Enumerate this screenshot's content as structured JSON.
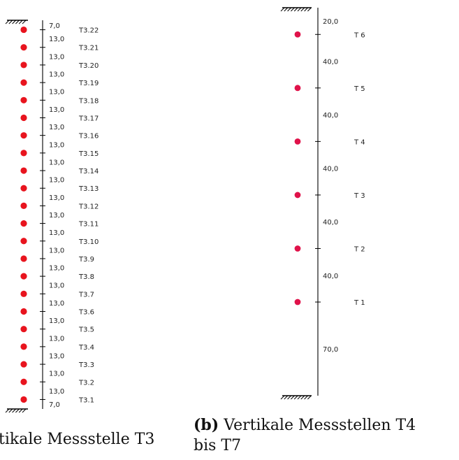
{
  "panel_a": {
    "caption_visible": "tikale Messstelle T3",
    "spacing": [
      "7,0",
      "13,0",
      "13,0",
      "13,0",
      "13,0",
      "13,0",
      "13,0",
      "13,0",
      "13,0",
      "13,0",
      "13,0",
      "13,0",
      "13,0",
      "13,0",
      "13,0",
      "13,0",
      "13,0",
      "13,0",
      "13,0",
      "13,0",
      "13,0",
      "13,0",
      "7,0"
    ],
    "sensors": [
      "T3.22",
      "T3.21",
      "T3.20",
      "T3.19",
      "T3.18",
      "T3.17",
      "T3.16",
      "T3.15",
      "T3.14",
      "T3.13",
      "T3.12",
      "T3.11",
      "T3.10",
      "T3.9",
      "T3.8",
      "T3.7",
      "T3.6",
      "T3.5",
      "T3.4",
      "T3.3",
      "T3.2",
      "T3.1"
    ],
    "sensor_color": "#e8141e"
  },
  "panel_b": {
    "caption_tag": "(b)",
    "caption_line1": "Vertikale Messstellen T4",
    "caption_line2": "bis T7",
    "spacing": [
      "20,0",
      "40,0",
      "40,0",
      "40,0",
      "40,0",
      "40,0",
      "70,0"
    ],
    "sensors": [
      "T 6",
      "T 5",
      "T 4",
      "T 3",
      "T 2",
      "T 1"
    ],
    "sensor_color": "#e0124a"
  }
}
